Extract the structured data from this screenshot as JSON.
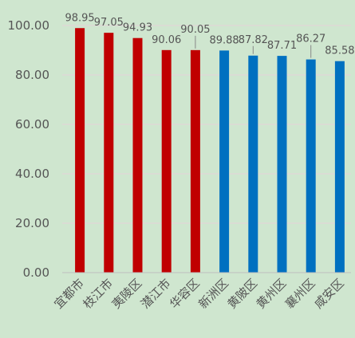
{
  "chart_data": {
    "type": "bar",
    "title": "",
    "xlabel": "",
    "ylabel": "",
    "ylim": [
      0,
      100
    ],
    "ytick_labels": [
      "0.00",
      "20.00",
      "40.00",
      "60.00",
      "80.00",
      "100.00"
    ],
    "grid": true,
    "categories": [
      "宜都市",
      "枝江市",
      "夷陵区",
      "潜江市",
      "华容区",
      "新洲区",
      "黄陂区",
      "黄州区",
      "襄州区",
      "咸安区"
    ],
    "values": [
      98.95,
      97.05,
      94.93,
      90.06,
      90.05,
      89.88,
      87.82,
      87.71,
      86.27,
      85.58
    ],
    "value_labels": [
      "98.95",
      "97.05",
      "94.93",
      "90.06",
      "90.05",
      "89.88",
      "87.82",
      "87.71",
      "86.27",
      "85.58"
    ],
    "bar_colors": [
      "#c00000",
      "#c00000",
      "#c00000",
      "#c00000",
      "#c00000",
      "#0070c0",
      "#0070c0",
      "#0070c0",
      "#0070c0",
      "#0070c0"
    ],
    "grid_color": "#e6d3da",
    "text_color": "#555555"
  }
}
